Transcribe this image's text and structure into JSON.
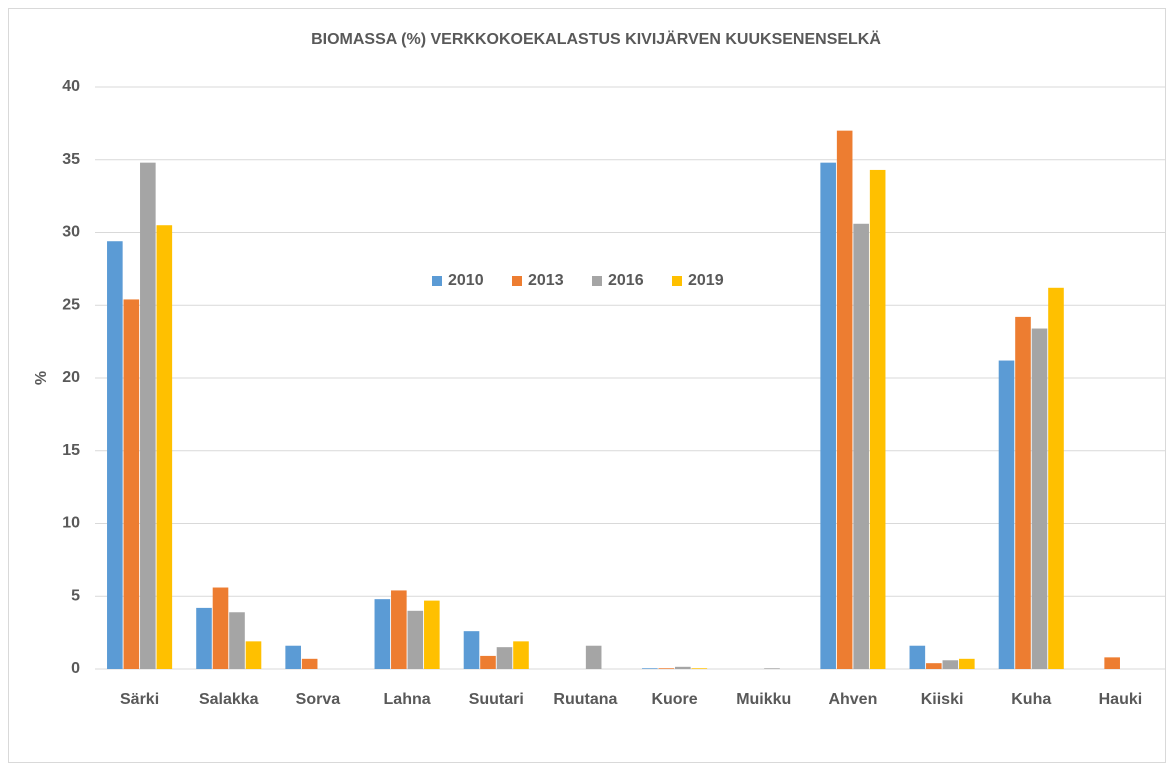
{
  "chart_data": {
    "type": "bar",
    "title": "BIOMASSA (%) VERKKOKOEKALASTUS  KIVIJÄRVEN KUUKSENENSELKÄ",
    "y_label": "%",
    "categories": [
      "Särki",
      "Salakka",
      "Sorva",
      "Lahna",
      "Suutari",
      "Ruutana",
      "Kuore",
      "Muikku",
      "Ahven",
      "Kiiski",
      "Kuha",
      "Hauki"
    ],
    "series": [
      {
        "name": "2010",
        "color": "#5b9bd5",
        "values": [
          29.4,
          4.2,
          1.6,
          4.8,
          2.6,
          0,
          0.05,
          0,
          34.8,
          1.6,
          21.2,
          0
        ]
      },
      {
        "name": "2013",
        "color": "#ed7d31",
        "values": [
          25.4,
          5.6,
          0.7,
          5.4,
          0.9,
          0,
          0.05,
          0,
          37.0,
          0.4,
          24.2,
          0.8
        ]
      },
      {
        "name": "2016",
        "color": "#a5a5a5",
        "values": [
          34.8,
          3.9,
          0,
          4.0,
          1.5,
          1.6,
          0.15,
          0.05,
          30.6,
          0.6,
          23.4,
          0
        ]
      },
      {
        "name": "2019",
        "color": "#ffc000",
        "values": [
          30.5,
          1.9,
          0,
          4.7,
          1.9,
          0,
          0.05,
          0,
          34.3,
          0.7,
          26.2,
          0
        ]
      }
    ],
    "ylim": [
      0,
      40
    ],
    "yticks": [
      0,
      5,
      10,
      15,
      20,
      25,
      30,
      35,
      40
    ],
    "grid": true,
    "legend": "center"
  }
}
